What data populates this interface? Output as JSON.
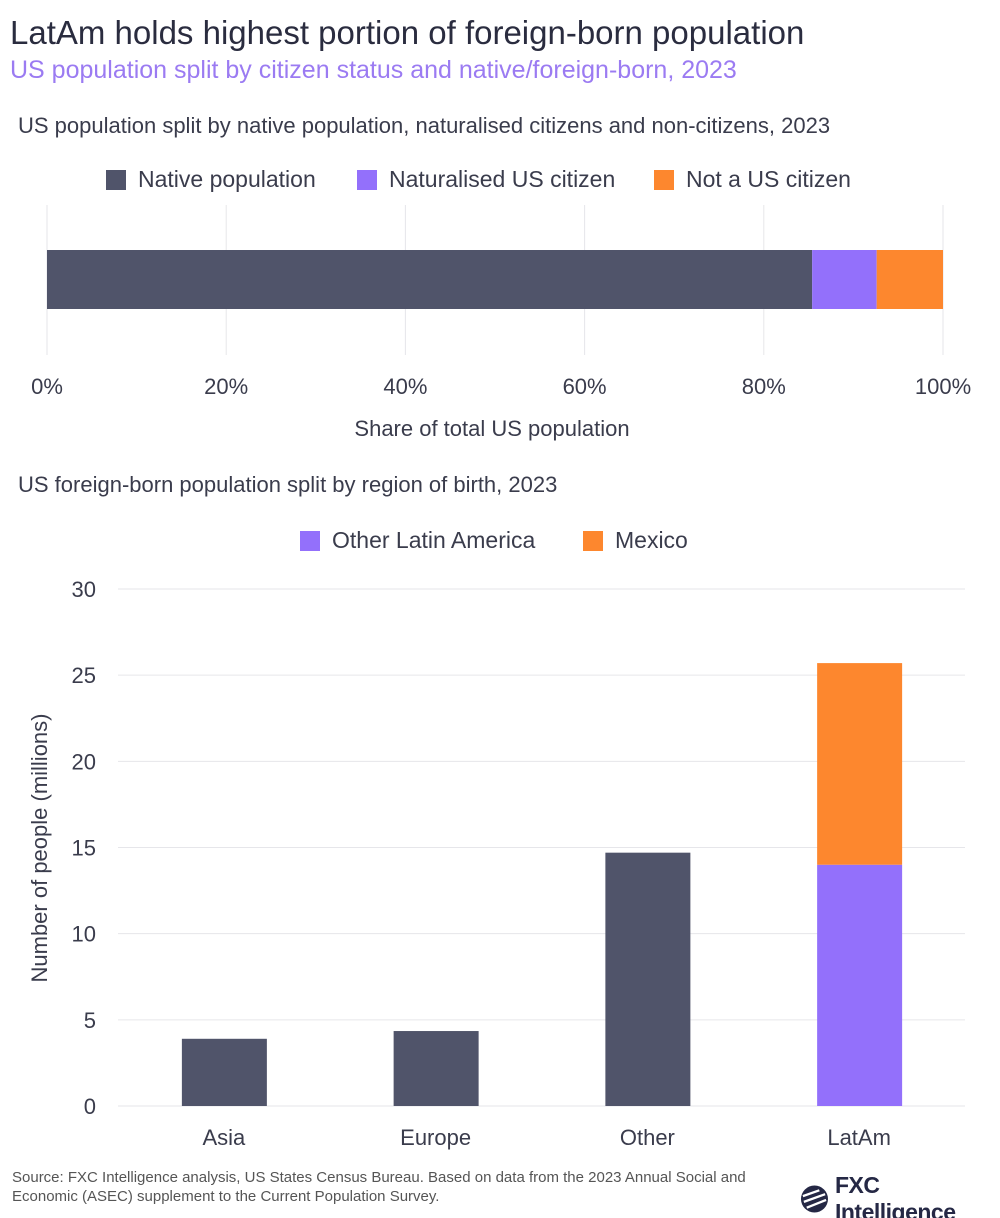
{
  "title": "LatAm holds highest portion of foreign-born population",
  "subtitle": "US population split by citizen status and native/foreign-born, 2023",
  "source": "Source: FXC Intelligence analysis, US States Census Bureau. Based on data from the 2023 Annual Social and Economic (ASEC) supplement to the Current Population Survey.",
  "logo": "FXC Intelligence",
  "colors": {
    "native": "#50546a",
    "naturalised": "#9370fb",
    "noncitizen": "#fd872e",
    "other_latam": "#9370fb",
    "mexico": "#fd872e",
    "bar": "#50546a"
  },
  "chart_data": [
    {
      "type": "bar",
      "orientation": "horizontal",
      "stacked": true,
      "title": "US population split by native population, naturalised citizens and non-citizens, 2023",
      "xlabel": "Share of total US population",
      "xlim": [
        0,
        100
      ],
      "xticks": [
        "0%",
        "20%",
        "40%",
        "60%",
        "80%",
        "100%"
      ],
      "legend_position": "top",
      "grid": true,
      "series": [
        {
          "name": "Native population",
          "values": [
            85.4
          ]
        },
        {
          "name": "Naturalised US citizen",
          "values": [
            7.2
          ]
        },
        {
          "name": "Not a US citizen",
          "values": [
            7.4
          ]
        }
      ]
    },
    {
      "type": "bar",
      "stacked": true,
      "title": "US foreign-born population split by region of birth, 2023",
      "ylabel": "Number of people (millions)",
      "ylim": [
        0,
        30
      ],
      "yticks": [
        "0",
        "5",
        "10",
        "15",
        "20",
        "25",
        "30"
      ],
      "categories": [
        "Asia",
        "Europe",
        "Other",
        "LatAm"
      ],
      "legend_position": "top",
      "grid": true,
      "series": [
        {
          "name": "",
          "values": [
            3.9,
            4.35,
            14.7,
            0
          ]
        },
        {
          "name": "Other Latin America",
          "values": [
            0,
            0,
            0,
            14.0
          ]
        },
        {
          "name": "Mexico",
          "values": [
            0,
            0,
            0,
            11.7
          ]
        }
      ]
    }
  ]
}
